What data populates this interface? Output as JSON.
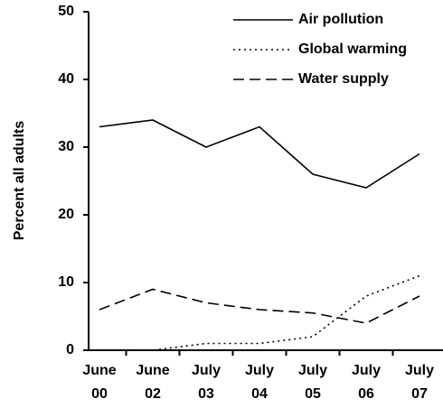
{
  "chart_data": {
    "type": "line",
    "categories": [
      "June 00",
      "June 02",
      "July 03",
      "July 04",
      "July 05",
      "July 06",
      "July 07"
    ],
    "series": [
      {
        "name": "Air pollution",
        "color": "#000000",
        "line_style": "solid",
        "values": [
          33,
          34,
          30,
          33,
          26,
          24,
          29
        ]
      },
      {
        "name": "Global warming",
        "color": "#000000",
        "line_style": "dotted",
        "values": [
          0,
          0,
          1,
          1,
          2,
          8,
          11
        ]
      },
      {
        "name": "Water supply",
        "color": "#000000",
        "line_style": "dashed",
        "values": [
          6,
          9,
          7,
          6,
          5.5,
          4,
          8
        ]
      }
    ],
    "y_label": "Percent all adults",
    "ylim": [
      0,
      50
    ],
    "yticks": [
      0,
      10,
      20,
      30,
      40,
      50
    ],
    "legend": "top-right"
  }
}
